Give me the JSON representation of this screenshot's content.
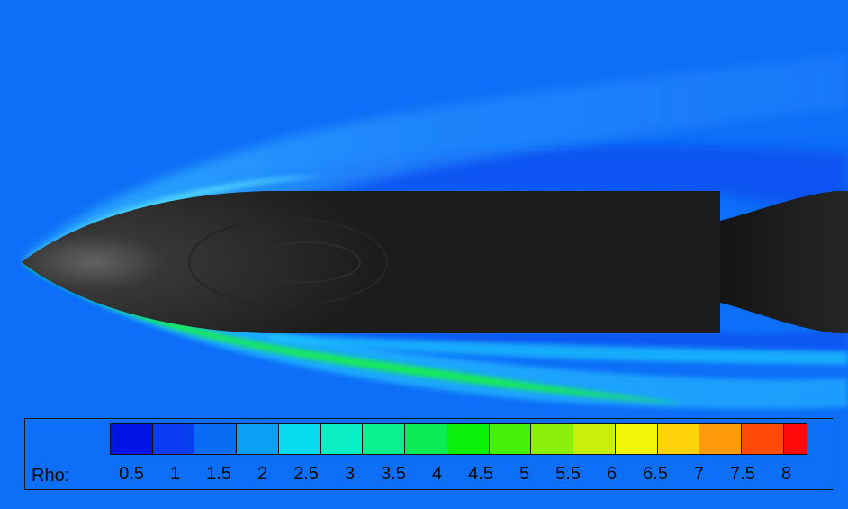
{
  "legend": {
    "title": "Rho:",
    "ticks": [
      "0.5",
      "1",
      "1.5",
      "2",
      "2.5",
      "3",
      "3.5",
      "4",
      "4.5",
      "5",
      "5.5",
      "6",
      "6.5",
      "7",
      "7.5",
      "8"
    ],
    "colors": [
      "#0014e6",
      "#0a3cf2",
      "#0a6cf5",
      "#0aa0f5",
      "#0adcf0",
      "#0af0c4",
      "#0af08c",
      "#0aeb55",
      "#0af00a",
      "#46f00a",
      "#8cf00a",
      "#c8f00a",
      "#f5f50a",
      "#ffd20a",
      "#ff9a0a",
      "#ff4a0a",
      "#ff0a0a"
    ]
  },
  "scene": {
    "background_color": "#0d6ef7",
    "body_color": "#1c1c1c"
  }
}
